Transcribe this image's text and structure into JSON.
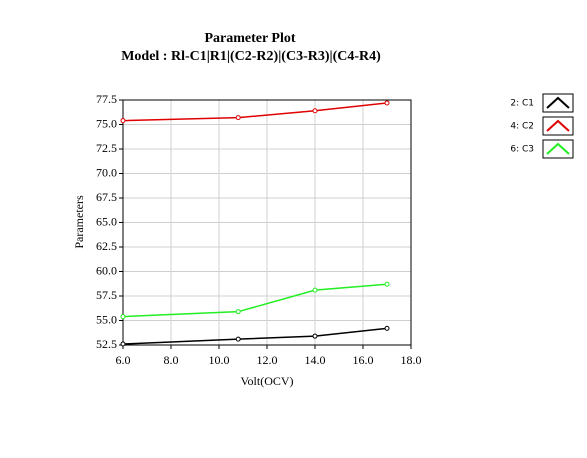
{
  "chart_data": {
    "type": "line",
    "title": "Parameter Plot",
    "subtitle": "Model :  Rl-C1|R1|(C2-R2)|(C3-R3)|(C4-R4)",
    "x_label": "Volt(OCV)",
    "y_label": "Parameters",
    "x": [
      6,
      10.8,
      14,
      17
    ],
    "series": [
      {
        "name": "2: C1",
        "color": "#000000",
        "values": [
          52.6,
          53.1,
          53.4,
          54.2
        ]
      },
      {
        "name": "4: C2",
        "color": "#e00000",
        "values": [
          75.4,
          75.7,
          76.4,
          77.2
        ]
      },
      {
        "name": "6: C3",
        "color": "#22ee22",
        "values": [
          55.4,
          55.9,
          58.1,
          58.7
        ]
      }
    ],
    "xlim": [
      6,
      18
    ],
    "xticks": [
      {
        "value": 6,
        "label": "6.0"
      },
      {
        "value": 8,
        "label": "8.0"
      },
      {
        "value": 10,
        "label": "10.0"
      },
      {
        "value": 12,
        "label": "12.0"
      },
      {
        "value": 14,
        "label": "14.0"
      },
      {
        "value": 16,
        "label": "16.0"
      },
      {
        "value": 18,
        "label": "18.0"
      }
    ],
    "ylim": [
      52.5,
      77.5
    ],
    "yticks": [
      52.5,
      {
        "value": 55,
        "label": "55.0"
      },
      57.5,
      {
        "value": 60,
        "label": "60.0"
      },
      62.5,
      {
        "value": 65,
        "label": "65.0"
      },
      67.5,
      {
        "value": 70,
        "label": "70.0"
      },
      72.5,
      {
        "value": 75,
        "label": "75.0"
      },
      77.5
    ],
    "grid": true,
    "legend": "right"
  }
}
